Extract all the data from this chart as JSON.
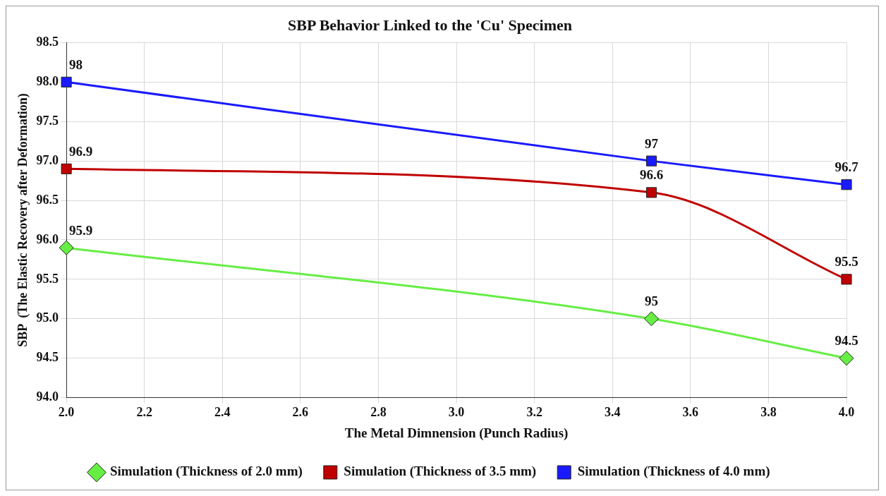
{
  "chart_data": {
    "type": "line",
    "title": "SBP Behavior Linked to the 'Cu' Specimen",
    "xlabel": "The Metal Dimnension (Punch Radius)",
    "ylabel": "SBP  (The Elastic Recovery after Deformation)",
    "x": [
      2.0,
      3.5,
      4.0
    ],
    "series": [
      {
        "name": "Simulation (Thickness of 2.0 mm)",
        "color": "#66ee44",
        "marker": "diamond",
        "values": [
          95.9,
          95,
          94.5
        ]
      },
      {
        "name": "Simulation (Thickness of 3.5 mm)",
        "color": "#c00000",
        "marker": "square",
        "values": [
          96.9,
          96.6,
          95.5
        ]
      },
      {
        "name": "Simulation (Thickness of 4.0 mm)",
        "color": "#1a1aff",
        "marker": "square",
        "values": [
          98,
          97,
          96.7
        ]
      }
    ],
    "xlim": [
      2.0,
      4.0
    ],
    "xticks": [
      {
        "value": 2,
        "label": "2.0"
      },
      {
        "value": 2.2,
        "label": "2.2"
      },
      {
        "value": 2.4,
        "label": "2.4"
      },
      {
        "value": 2.6,
        "label": "2.6"
      },
      {
        "value": 2.8,
        "label": "2.8"
      },
      {
        "value": 3,
        "label": "3.0"
      },
      {
        "value": 3.2,
        "label": "3.2"
      },
      {
        "value": 3.4,
        "label": "3.4"
      },
      {
        "value": 3.6,
        "label": "3.6"
      },
      {
        "value": 3.8,
        "label": "3.8"
      },
      {
        "value": 4,
        "label": "4.0"
      }
    ],
    "ylim": [
      94.0,
      98.5
    ],
    "yticks": [
      {
        "value": 94,
        "label": "94.0"
      },
      94.5,
      {
        "value": 95,
        "label": "95.0"
      },
      95.5,
      {
        "value": 96,
        "label": "96.0"
      },
      96.5,
      {
        "value": 97,
        "label": "97.0"
      },
      97.5,
      {
        "value": 98,
        "label": "98.0"
      },
      98.5
    ],
    "grid": true,
    "legend": "bottom",
    "data_labels": true
  }
}
